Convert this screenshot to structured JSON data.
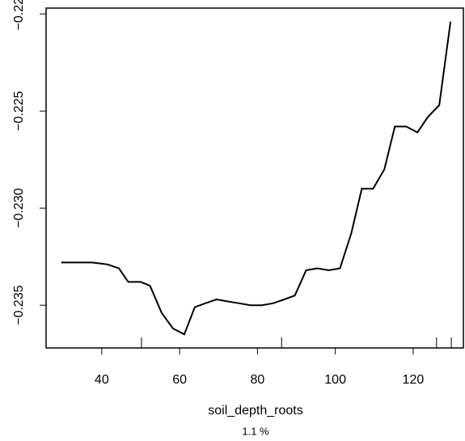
{
  "chart_data": {
    "type": "line",
    "xlabel": "soil_depth_roots",
    "subtitle": "1.1 %",
    "x": [
      29.6,
      37.5,
      41.5,
      44.4,
      46.8,
      50.0,
      52.4,
      55.4,
      58.3,
      61.2,
      63.9,
      66.6,
      69.5,
      72.2,
      75.3,
      78.2,
      81.1,
      84.0,
      86.9,
      89.6,
      92.5,
      95.4,
      98.3,
      101.2,
      104.1,
      106.8,
      109.7,
      112.6,
      115.3,
      118.2,
      121.1,
      123.8,
      126.7,
      129.6
    ],
    "series": [
      {
        "color": "#000000",
        "values": [
          -0.2328,
          -0.2328,
          -0.2329,
          -0.2331,
          -0.2338,
          -0.2338,
          -0.234,
          -0.2354,
          -0.2362,
          -0.2365,
          -0.2351,
          -0.2349,
          -0.2347,
          -0.2348,
          -0.2349,
          -0.235,
          -0.235,
          -0.2349,
          -0.2347,
          -0.2345,
          -0.2332,
          -0.2331,
          -0.2332,
          -0.2331,
          -0.2313,
          -0.229,
          -0.229,
          -0.228,
          -0.2258,
          -0.2258,
          -0.2261,
          -0.2253,
          -0.2247,
          -0.2204
        ]
      }
    ],
    "rug": [
      50.2,
      86.2,
      126.0,
      129.8
    ],
    "xlim": [
      25.7,
      132.9
    ],
    "ylim": [
      -0.2372,
      -0.2197
    ],
    "xticks": [
      40,
      60,
      80,
      100,
      120
    ],
    "yticks": [
      {
        "value": -0.235,
        "label": "−0.235"
      },
      {
        "value": -0.23,
        "label": "−0.230"
      },
      {
        "value": -0.225,
        "label": "−0.225"
      },
      {
        "value": -0.22,
        "label": "−0.22"
      }
    ]
  }
}
